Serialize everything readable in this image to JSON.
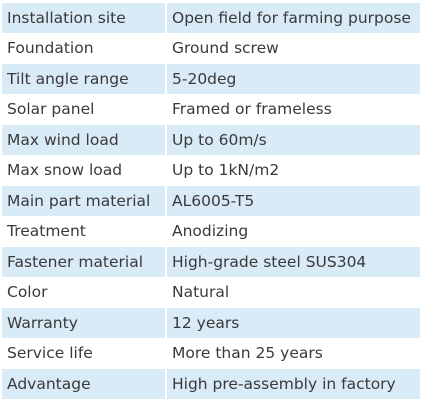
{
  "table": {
    "rows": [
      [
        "Installation site",
        "Open field for farming purpose"
      ],
      [
        "Foundation",
        "Ground screw"
      ],
      [
        "Tilt angle range",
        "5-20deg"
      ],
      [
        "Solar panel",
        "Framed or frameless"
      ],
      [
        "Max wind load",
        "Up to 60m/s"
      ],
      [
        "Max snow load",
        "Up to 1kN/m2"
      ],
      [
        "Main part material",
        "AL6005-T5"
      ],
      [
        "Treatment",
        "Anodizing"
      ],
      [
        "Fastener material",
        "High-grade steel SUS304"
      ],
      [
        "Color",
        "Natural"
      ],
      [
        "Warranty",
        "12 years"
      ],
      [
        "Service life",
        "More than 25 years"
      ],
      [
        "Advantage",
        "High pre-assembly in factory"
      ]
    ]
  }
}
